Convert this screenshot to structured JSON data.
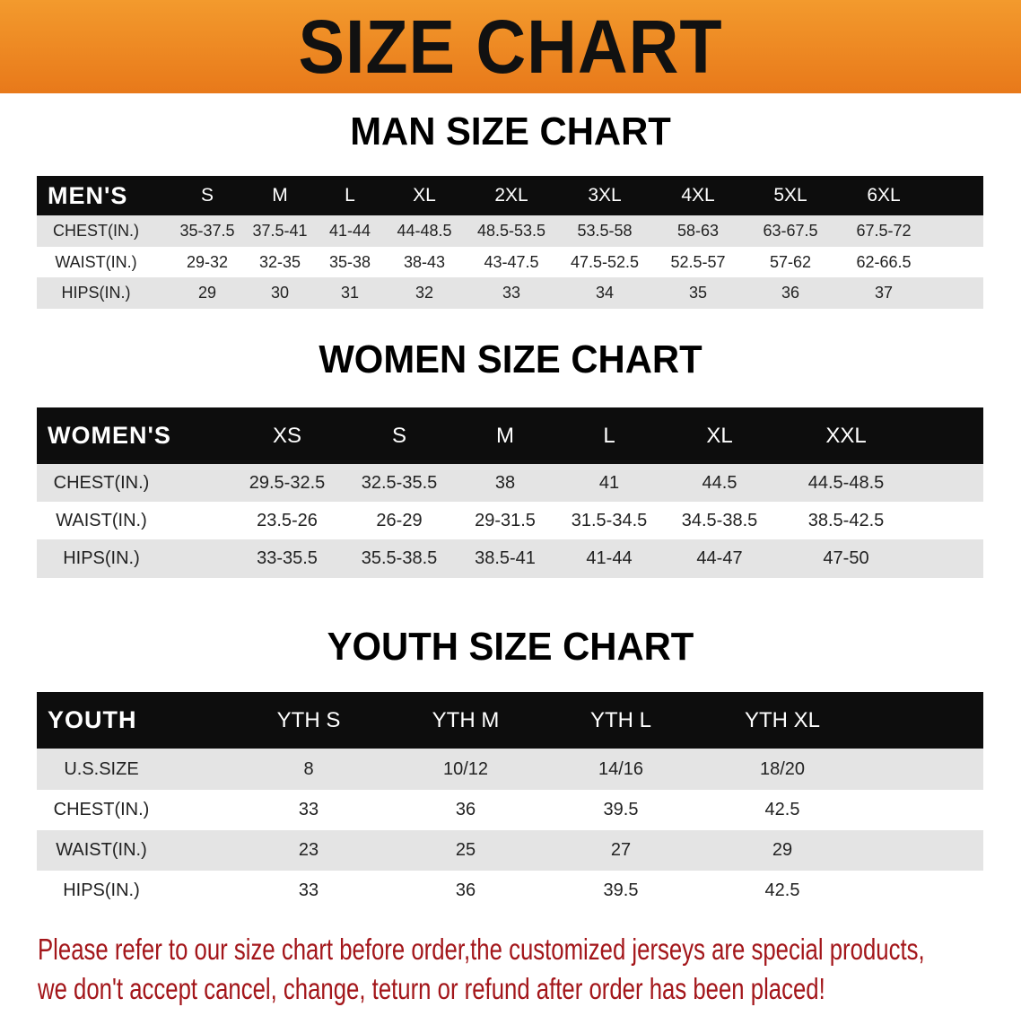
{
  "banner": {
    "title": "SIZE CHART",
    "color": "#ee8420"
  },
  "men": {
    "title": "MAN SIZE CHART",
    "headers": [
      "MEN'S",
      "S",
      "M",
      "L",
      "XL",
      "2XL",
      "3XL",
      "4XL",
      "5XL",
      "6XL"
    ],
    "rows": [
      [
        "CHEST(IN.)",
        "35-37.5",
        "37.5-41",
        "41-44",
        "44-48.5",
        "48.5-53.5",
        "53.5-58",
        "58-63",
        "63-67.5",
        "67.5-72"
      ],
      [
        "WAIST(IN.)",
        "29-32",
        "32-35",
        "35-38",
        "38-43",
        "43-47.5",
        "47.5-52.5",
        "52.5-57",
        "57-62",
        "62-66.5"
      ],
      [
        "HIPS(IN.)",
        "29",
        "30",
        "31",
        "32",
        "33",
        "34",
        "35",
        "36",
        "37"
      ]
    ]
  },
  "women": {
    "title": "WOMEN SIZE CHART",
    "headers": [
      "WOMEN'S",
      "XS",
      "S",
      "M",
      "L",
      "XL",
      "XXL"
    ],
    "rows": [
      [
        "CHEST(IN.)",
        "29.5-32.5",
        "32.5-35.5",
        "38",
        "41",
        "44.5",
        "44.5-48.5"
      ],
      [
        "WAIST(IN.)",
        "23.5-26",
        "26-29",
        "29-31.5",
        "31.5-34.5",
        "34.5-38.5",
        "38.5-42.5"
      ],
      [
        "HIPS(IN.)",
        "33-35.5",
        "35.5-38.5",
        "38.5-41",
        "41-44",
        "44-47",
        "47-50"
      ]
    ]
  },
  "youth": {
    "title": "YOUTH SIZE CHART",
    "headers": [
      "YOUTH",
      "YTH S",
      "YTH M",
      "YTH L",
      "YTH XL"
    ],
    "rows": [
      [
        "U.S.SIZE",
        "8",
        "10/12",
        "14/16",
        "18/20"
      ],
      [
        "CHEST(IN.)",
        "33",
        "36",
        "39.5",
        "42.5"
      ],
      [
        "WAIST(IN.)",
        "23",
        "25",
        "27",
        "29"
      ],
      [
        "HIPS(IN.)",
        "33",
        "36",
        "39.5",
        "42.5"
      ]
    ]
  },
  "note": {
    "line1": "Please refer to our size chart before order,the customized jerseys are special products,",
    "line2": "we don't accept cancel, change, teturn or refund after order has been placed!",
    "color": "#a3161a"
  }
}
